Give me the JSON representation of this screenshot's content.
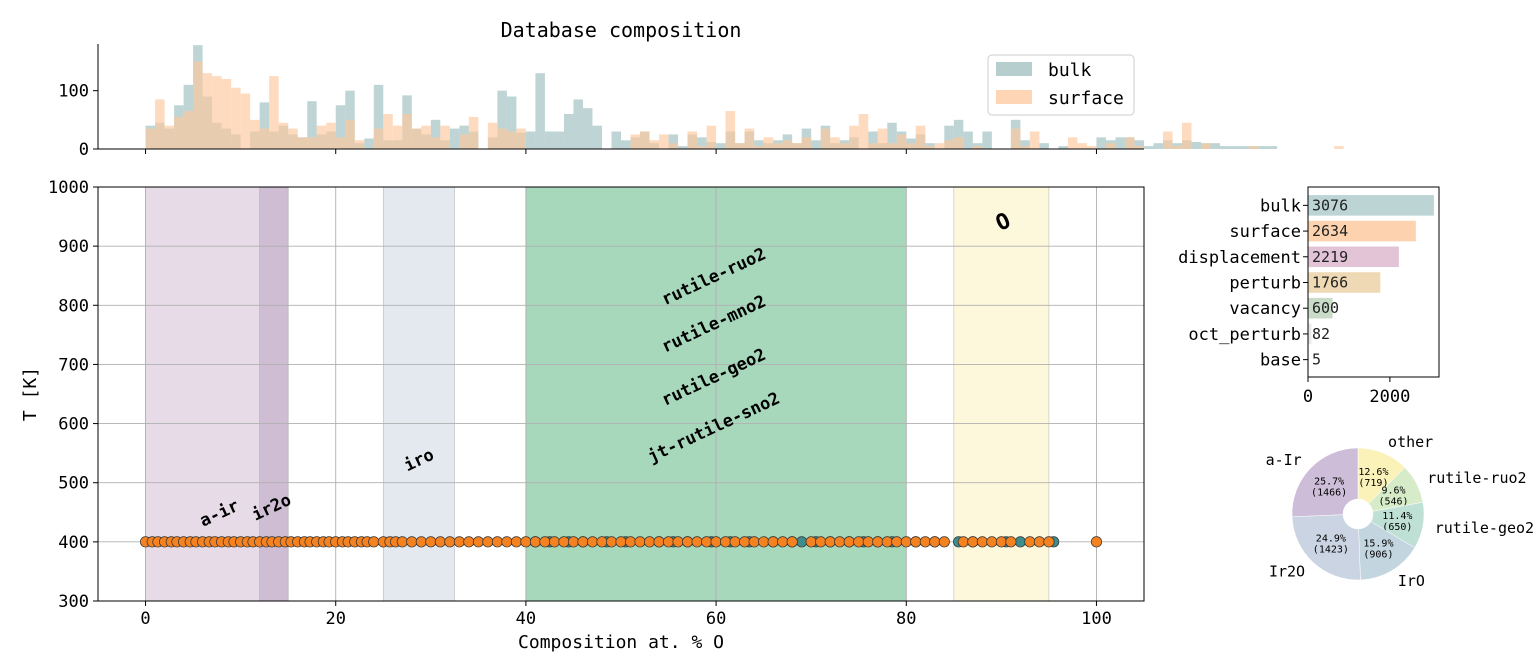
{
  "chart_data": [
    {
      "id": "histogram",
      "type": "bar",
      "title": "Database composition",
      "xlim": [
        -5,
        105
      ],
      "ylim": [
        0,
        180
      ],
      "yticks": [
        0,
        100
      ],
      "xticks": [
        0,
        20,
        40,
        60,
        80,
        100
      ],
      "bin_width": 1,
      "legend": {
        "placement": "top-right",
        "entries": [
          "bulk",
          "surface"
        ]
      },
      "series": [
        {
          "name": "bulk",
          "color": "#9dbfbe",
          "values": [
            40,
            45,
            35,
            75,
            110,
            178,
            90,
            45,
            35,
            25,
            0,
            30,
            80,
            30,
            40,
            25,
            20,
            82,
            25,
            30,
            75,
            100,
            10,
            18,
            110,
            15,
            15,
            92,
            35,
            25,
            50,
            15,
            35,
            40,
            30,
            0,
            20,
            100,
            90,
            28,
            30,
            130,
            30,
            30,
            60,
            85,
            70,
            40,
            0,
            30,
            15,
            20,
            30,
            10,
            0,
            25,
            5,
            25,
            20,
            12,
            10,
            30,
            10,
            30,
            15,
            10,
            15,
            25,
            10,
            35,
            15,
            40,
            10,
            15,
            20,
            0,
            30,
            10,
            45,
            30,
            18,
            25,
            10,
            0,
            40,
            50,
            30,
            10,
            30,
            0,
            0,
            50,
            15,
            0,
            10,
            0,
            5,
            0,
            0,
            0,
            20,
            15,
            20,
            20,
            15,
            5,
            10,
            15,
            10,
            15,
            12,
            10,
            10,
            5,
            5,
            5,
            5,
            5,
            5,
            0
          ]
        },
        {
          "name": "surface",
          "color": "#fdc89d",
          "values": [
            35,
            85,
            40,
            55,
            65,
            150,
            130,
            125,
            120,
            105,
            95,
            50,
            35,
            125,
            45,
            35,
            20,
            20,
            40,
            45,
            20,
            50,
            15,
            0,
            35,
            60,
            40,
            60,
            35,
            40,
            20,
            40,
            0,
            25,
            55,
            0,
            45,
            35,
            30,
            35,
            0,
            0,
            0,
            0,
            0,
            0,
            0,
            0,
            0,
            0,
            0,
            25,
            30,
            15,
            25,
            10,
            0,
            30,
            5,
            40,
            0,
            65,
            10,
            35,
            5,
            20,
            10,
            15,
            10,
            20,
            0,
            35,
            20,
            10,
            40,
            60,
            10,
            35,
            10,
            25,
            10,
            40,
            5,
            10,
            15,
            20,
            0,
            5,
            0,
            0,
            0,
            35,
            5,
            30,
            0,
            0,
            0,
            20,
            10,
            5,
            0,
            10,
            0,
            20,
            5,
            0,
            0,
            30,
            5,
            45,
            0,
            10,
            0,
            0,
            0,
            0,
            5,
            0,
            0,
            0,
            0,
            0,
            0,
            0,
            0,
            5
          ]
        }
      ]
    },
    {
      "id": "scatter",
      "type": "scatter",
      "xlabel": "Composition at. % O",
      "ylabel": "T [K]",
      "xlim": [
        -5,
        105
      ],
      "ylim": [
        300,
        1000
      ],
      "xticks": [
        0,
        20,
        40,
        60,
        80,
        100
      ],
      "yticks": [
        300,
        400,
        500,
        600,
        700,
        800,
        900,
        1000
      ],
      "grid": true,
      "regions": [
        {
          "label": "a-ir",
          "x": [
            0,
            15
          ],
          "color": "#e6dbe6",
          "label_at": [
            8,
            440
          ],
          "rotate": -25
        },
        {
          "label": "ir2o",
          "x": [
            12,
            15
          ],
          "color": "#c9b7cf",
          "label_at": [
            13.5,
            450
          ],
          "rotate": -25
        },
        {
          "label": "iro",
          "x": [
            25,
            32.5
          ],
          "color": "#e4e9f0",
          "label_at": [
            29,
            530
          ],
          "rotate": -25
        },
        {
          "label": "",
          "x": [
            40,
            80
          ],
          "color": "#a7d8bc",
          "label_at": [
            60,
            700
          ],
          "rotate": -25
        },
        {
          "label": "O",
          "x": [
            85,
            95
          ],
          "color": "#fdf7dc",
          "label_at": [
            90.5,
            930
          ],
          "rotate": -25
        }
      ],
      "region_labels_green": [
        {
          "text": "rutile-ruo2",
          "at": [
            60,
            840
          ]
        },
        {
          "text": "rutile-mno2",
          "at": [
            60,
            760
          ]
        },
        {
          "text": "rutile-geo2",
          "at": [
            60,
            670
          ]
        },
        {
          "text": "jt-rutile-sno2",
          "at": [
            60,
            585
          ]
        }
      ],
      "series": [
        {
          "name": "surface",
          "color": "#f58220",
          "y": 400,
          "x": [
            0,
            0.7,
            1.3,
            2,
            2.7,
            3.3,
            4,
            4.7,
            5.3,
            6,
            6.7,
            7.3,
            8,
            8.7,
            9.3,
            10,
            10.7,
            11.3,
            12,
            12.7,
            13.3,
            14,
            14.7,
            15.3,
            16,
            16.7,
            17.3,
            18,
            18.7,
            19.3,
            20,
            20.7,
            21.3,
            22,
            22.7,
            23.3,
            24,
            25,
            25.7,
            26.3,
            27,
            28,
            29,
            30,
            31,
            32,
            33,
            34,
            35,
            36,
            37,
            38,
            39,
            40,
            41,
            42,
            43,
            44,
            45,
            46,
            47,
            48,
            49,
            50,
            51,
            52,
            53,
            54,
            55,
            56,
            57,
            58,
            59,
            60,
            61,
            62,
            63,
            64,
            65,
            66,
            67,
            68,
            70,
            71,
            72,
            73,
            74,
            75,
            76,
            77,
            78,
            79,
            80,
            81,
            82,
            83,
            84,
            86,
            87,
            88,
            89,
            90,
            91,
            93,
            94,
            95,
            100
          ]
        },
        {
          "name": "bulk",
          "color": "#3f8c8d",
          "y": 400,
          "x": [
            41,
            42.5,
            44.5,
            46,
            48.5,
            50.5,
            54,
            55.5,
            57,
            59.5,
            61.5,
            63.5,
            66,
            68,
            69,
            70.5,
            72,
            74,
            75.5,
            77,
            78.5,
            81,
            83,
            85.5,
            87,
            90.5,
            92,
            95.5
          ]
        }
      ]
    },
    {
      "id": "counts",
      "type": "bar",
      "orientation": "horizontal",
      "xlim": [
        0,
        3200
      ],
      "xticks": [
        0,
        2000
      ],
      "categories": [
        "bulk",
        "surface",
        "displacement",
        "perturb",
        "vacancy",
        "oct_perturb",
        "base"
      ],
      "values": [
        3076,
        2634,
        2219,
        1766,
        600,
        82,
        5
      ],
      "value_labels": [
        "3076",
        "2634",
        "2219",
        "1766",
        "600",
        "82",
        "5"
      ],
      "colors": [
        "#bcd5d4",
        "#fdd2ae",
        "#e3c3d6",
        "#efd9b4",
        "#c8dcc8",
        "#e9e9e9",
        "#f2f2f2"
      ]
    },
    {
      "id": "pie",
      "type": "pie",
      "donut": true,
      "slices": [
        {
          "label": "other",
          "pct": 12.6,
          "count": 719,
          "pct_text": "12.6%",
          "count_text": "(719)",
          "color": "#fbf2ba"
        },
        {
          "label": "rutile-ruo2",
          "pct": 9.6,
          "count": 546,
          "pct_text": "9.6%",
          "count_text": "(546)",
          "color": "#d6ecc9"
        },
        {
          "label": "rutile-geo2",
          "pct": 11.4,
          "count": 650,
          "pct_text": "11.4%",
          "count_text": "(650)",
          "color": "#bfe0d4"
        },
        {
          "label": "IrO",
          "pct": 15.9,
          "count": 906,
          "pct_text": "15.9%",
          "count_text": "(906)",
          "color": "#c3d6e0"
        },
        {
          "label": "Ir2O",
          "pct": 24.9,
          "count": 1423,
          "pct_text": "24.9%",
          "count_text": "(1423)",
          "color": "#cbd4e3"
        },
        {
          "label": "a-Ir",
          "pct": 25.7,
          "count": 1466,
          "pct_text": "25.7%",
          "count_text": "(1466)",
          "color": "#cdbdd8"
        }
      ]
    }
  ]
}
